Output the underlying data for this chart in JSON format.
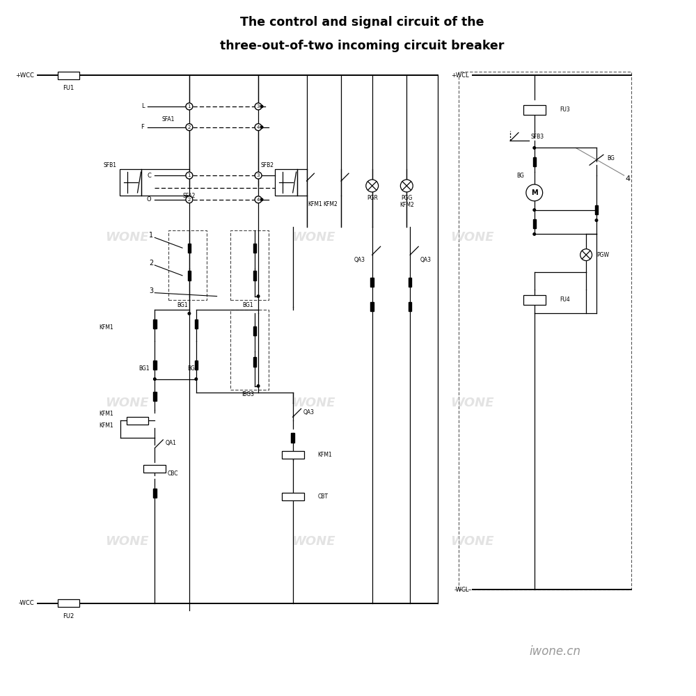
{
  "title_line1": "The control and signal circuit of the",
  "title_line2": "three-out-of-two incoming circuit breaker",
  "bg_color": "#ffffff",
  "line_color": "#000000",
  "watermark": "WONE",
  "watermark_color": "#c8c8c8",
  "footer_text": "iwone.cn",
  "footer_color": "#999999"
}
